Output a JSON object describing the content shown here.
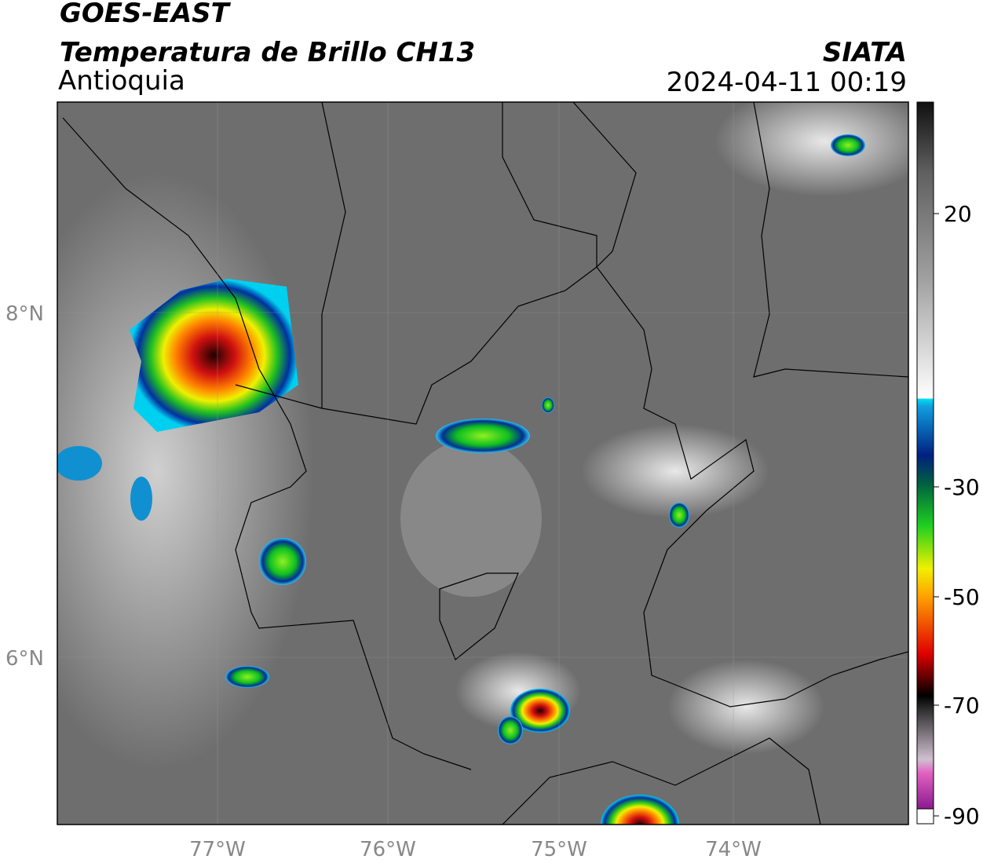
{
  "header": {
    "satellite": "GOES-EAST",
    "product": "Temperatura de Brillo CH13",
    "region": "Antioquia",
    "source": "SIATA",
    "datetime": "2024-04-11 00:19"
  },
  "map": {
    "lat_labels": [
      "8°N",
      "6°N"
    ],
    "lon_labels": [
      "77°W",
      "76°W",
      "75°W",
      "74°W"
    ]
  },
  "colorbar": {
    "ticks": [
      20,
      -30,
      -50,
      -70,
      -90
    ]
  }
}
